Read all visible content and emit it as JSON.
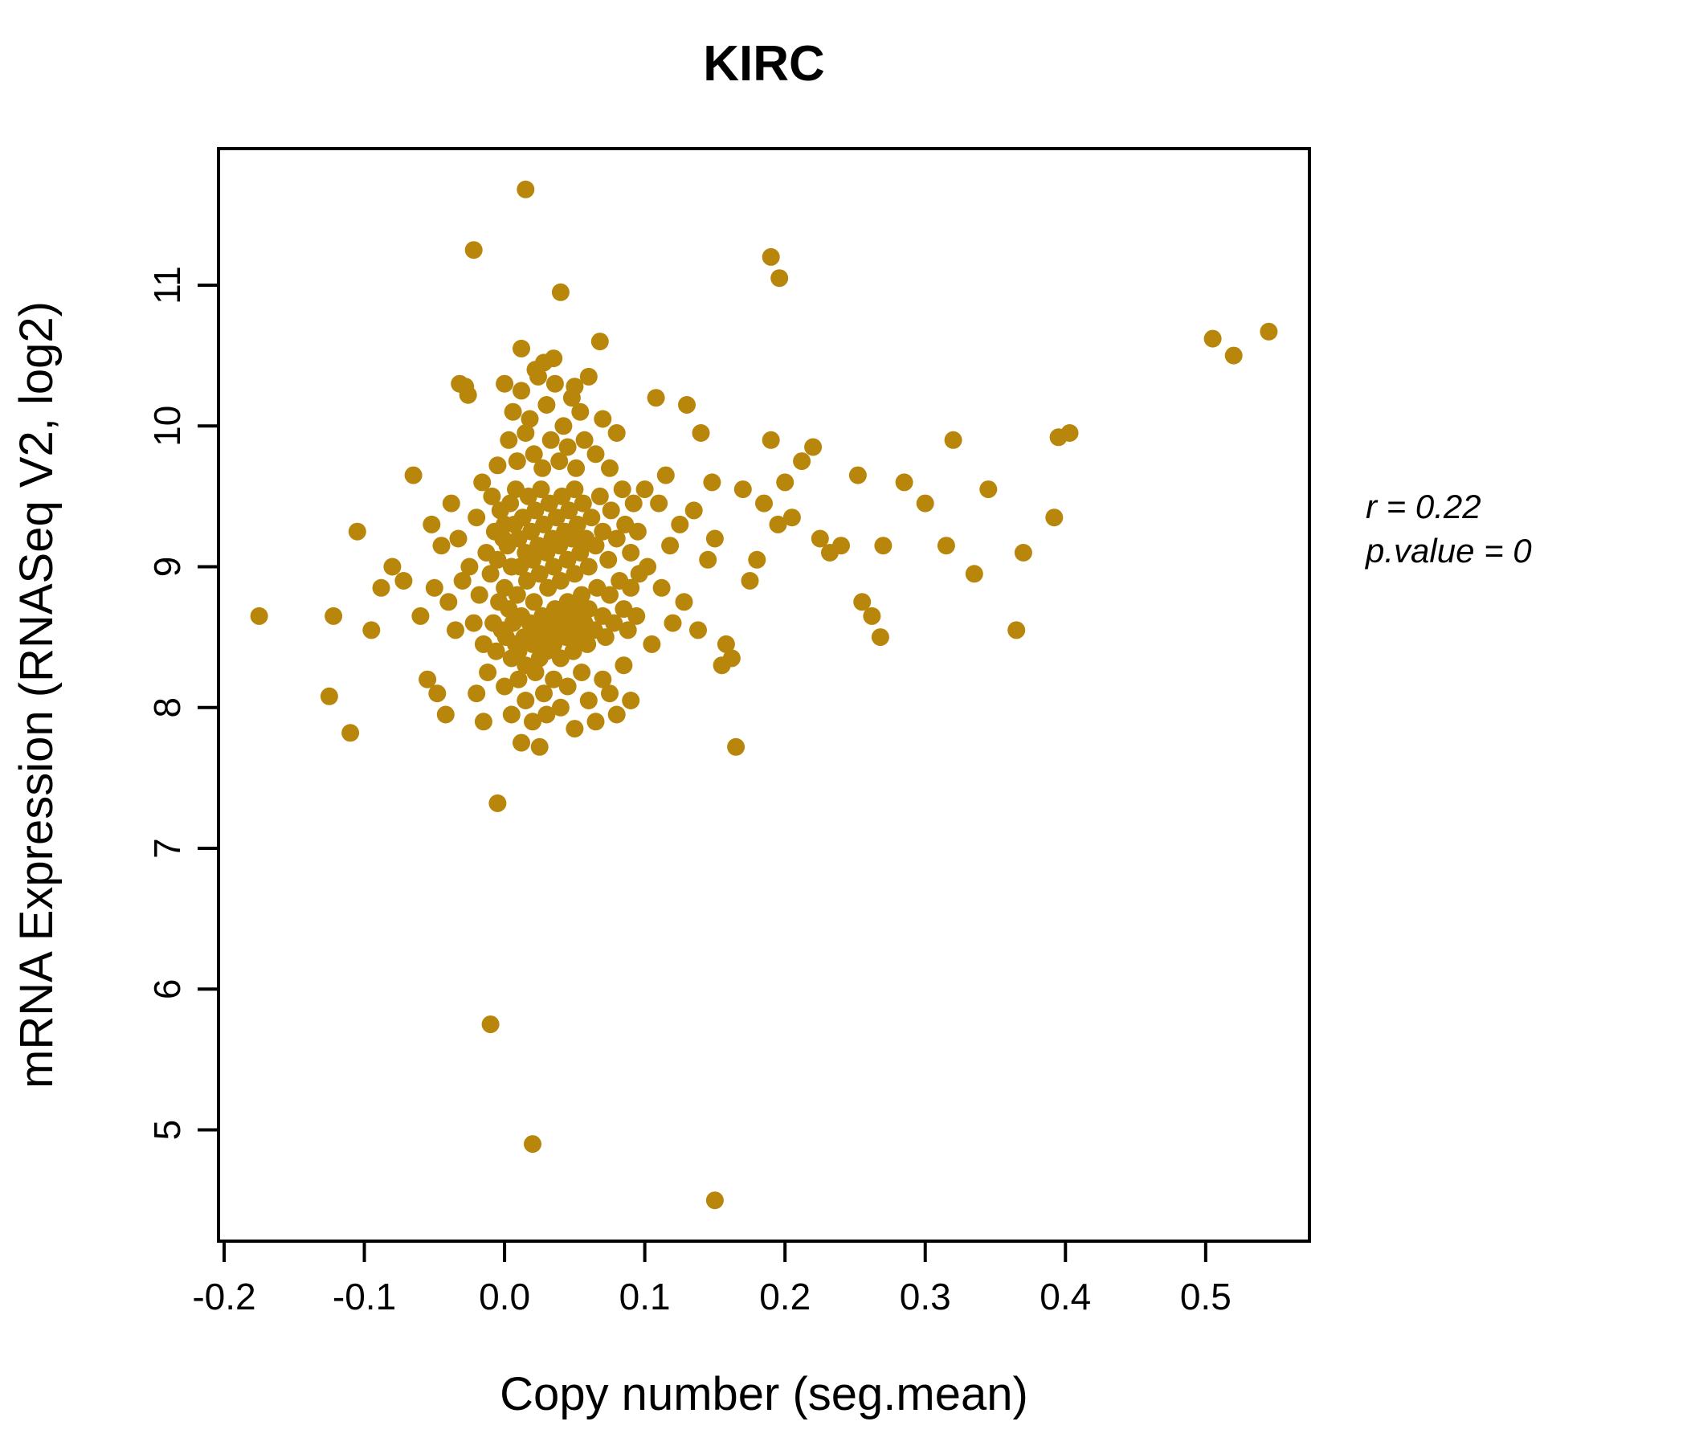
{
  "title": "KIRC",
  "accent_color": "#B8860B",
  "annotation": {
    "r_label": "r = 0.22",
    "p_label": "p.value = 0"
  },
  "chart_data": {
    "type": "scatter",
    "title": "KIRC",
    "xlabel": "Copy number (seg.mean)",
    "ylabel": "mRNA Expression (RNASeq V2, log2)",
    "point_color": "#B8860B",
    "r": 0.22,
    "p_value": 0,
    "x_ticks": [
      "-0.2",
      "-0.1",
      "0.0",
      "0.1",
      "0.2",
      "0.3",
      "0.4",
      "0.5"
    ],
    "y_ticks": [
      "5",
      "6",
      "7",
      "8",
      "9",
      "10",
      "11"
    ],
    "xlim": [
      -0.204,
      0.574
    ],
    "ylim": [
      4.21,
      11.97
    ],
    "grid": false,
    "legend": "none",
    "points": [
      [
        0.015,
        11.68
      ],
      [
        -0.022,
        11.25
      ],
      [
        0.19,
        11.2
      ],
      [
        0.196,
        11.05
      ],
      [
        0.04,
        10.95
      ],
      [
        0.068,
        10.6
      ],
      [
        0.012,
        10.55
      ],
      [
        0.035,
        10.48
      ],
      [
        0.505,
        10.62
      ],
      [
        0.52,
        10.5
      ],
      [
        0.545,
        10.67
      ],
      [
        -0.175,
        8.65
      ],
      [
        -0.125,
        8.08
      ],
      [
        -0.122,
        8.65
      ],
      [
        -0.11,
        7.82
      ],
      [
        -0.105,
        9.25
      ],
      [
        -0.095,
        8.55
      ],
      [
        -0.088,
        8.85
      ],
      [
        -0.08,
        9.0
      ],
      [
        -0.072,
        8.9
      ],
      [
        -0.065,
        9.65
      ],
      [
        -0.06,
        8.65
      ],
      [
        -0.055,
        8.2
      ],
      [
        -0.052,
        9.3
      ],
      [
        -0.05,
        8.85
      ],
      [
        -0.048,
        8.1
      ],
      [
        -0.045,
        9.15
      ],
      [
        -0.042,
        7.95
      ],
      [
        -0.04,
        8.75
      ],
      [
        -0.038,
        9.45
      ],
      [
        -0.035,
        8.55
      ],
      [
        -0.033,
        9.2
      ],
      [
        -0.03,
        8.9
      ],
      [
        -0.028,
        10.28
      ],
      [
        -0.026,
        10.22
      ],
      [
        -0.025,
        9.0
      ],
      [
        -0.022,
        8.6
      ],
      [
        -0.02,
        9.35
      ],
      [
        -0.018,
        8.8
      ],
      [
        -0.016,
        9.6
      ],
      [
        -0.015,
        8.45
      ],
      [
        -0.013,
        9.1
      ],
      [
        -0.012,
        8.25
      ],
      [
        -0.01,
        8.95
      ],
      [
        -0.009,
        9.5
      ],
      [
        -0.008,
        8.6
      ],
      [
        -0.007,
        9.25
      ],
      [
        -0.006,
        8.4
      ],
      [
        -0.005,
        9.05
      ],
      [
        -0.004,
        8.75
      ],
      [
        -0.003,
        9.4
      ],
      [
        -0.002,
        8.55
      ],
      [
        -0.001,
        9.2
      ],
      [
        0.0,
        8.85
      ],
      [
        0.0,
        9.3
      ],
      [
        0.001,
        8.5
      ],
      [
        0.002,
        9.15
      ],
      [
        0.003,
        8.7
      ],
      [
        0.004,
        9.45
      ],
      [
        0.005,
        8.35
      ],
      [
        0.005,
        9.0
      ],
      [
        0.006,
        8.6
      ],
      [
        0.007,
        9.3
      ],
      [
        0.008,
        8.45
      ],
      [
        0.008,
        9.55
      ],
      [
        0.009,
        8.8
      ],
      [
        0.01,
        9.2
      ],
      [
        0.01,
        8.4
      ],
      [
        0.011,
        9.0
      ],
      [
        0.012,
        8.65
      ],
      [
        0.013,
        9.35
      ],
      [
        0.014,
        8.5
      ],
      [
        0.015,
        9.1
      ],
      [
        0.015,
        8.3
      ],
      [
        0.016,
        8.9
      ],
      [
        0.017,
        9.5
      ],
      [
        0.018,
        8.6
      ],
      [
        0.019,
        9.25
      ],
      [
        0.02,
        8.45
      ],
      [
        0.02,
        9.05
      ],
      [
        0.021,
        8.75
      ],
      [
        0.022,
        9.4
      ],
      [
        0.023,
        8.55
      ],
      [
        0.024,
        9.15
      ],
      [
        0.025,
        8.35
      ],
      [
        0.025,
        8.95
      ],
      [
        0.026,
        9.55
      ],
      [
        0.027,
        8.65
      ],
      [
        0.028,
        9.3
      ],
      [
        0.029,
        8.5
      ],
      [
        0.03,
        9.1
      ],
      [
        0.03,
        8.4
      ],
      [
        0.031,
        8.85
      ],
      [
        0.032,
        9.45
      ],
      [
        0.033,
        8.6
      ],
      [
        0.034,
        9.2
      ],
      [
        0.035,
        8.45
      ],
      [
        0.035,
        9.0
      ],
      [
        0.036,
        8.7
      ],
      [
        0.037,
        9.35
      ],
      [
        0.038,
        8.55
      ],
      [
        0.039,
        9.15
      ],
      [
        0.04,
        8.35
      ],
      [
        0.04,
        8.9
      ],
      [
        0.041,
        9.5
      ],
      [
        0.042,
        8.65
      ],
      [
        0.043,
        9.25
      ],
      [
        0.044,
        8.5
      ],
      [
        0.045,
        9.05
      ],
      [
        0.045,
        8.75
      ],
      [
        0.046,
        9.4
      ],
      [
        0.047,
        8.6
      ],
      [
        0.048,
        9.2
      ],
      [
        0.049,
        8.4
      ],
      [
        0.05,
        8.95
      ],
      [
        0.05,
        9.55
      ],
      [
        0.051,
        8.7
      ],
      [
        0.052,
        9.3
      ],
      [
        0.053,
        8.5
      ],
      [
        0.054,
        9.1
      ],
      [
        0.055,
        8.8
      ],
      [
        0.056,
        9.45
      ],
      [
        0.057,
        8.6
      ],
      [
        0.058,
        9.2
      ],
      [
        0.059,
        8.45
      ],
      [
        0.06,
        9.0
      ],
      [
        0.06,
        8.7
      ],
      [
        0.062,
        9.35
      ],
      [
        0.064,
        8.55
      ],
      [
        0.065,
        9.15
      ],
      [
        0.066,
        8.85
      ],
      [
        0.068,
        9.5
      ],
      [
        0.07,
        8.65
      ],
      [
        0.07,
        9.25
      ],
      [
        0.072,
        8.5
      ],
      [
        0.074,
        9.05
      ],
      [
        0.075,
        8.8
      ],
      [
        0.076,
        9.4
      ],
      [
        0.078,
        8.6
      ],
      [
        0.08,
        9.2
      ],
      [
        0.082,
        8.9
      ],
      [
        0.084,
        9.55
      ],
      [
        0.085,
        8.7
      ],
      [
        0.086,
        9.3
      ],
      [
        0.088,
        8.55
      ],
      [
        0.09,
        9.1
      ],
      [
        0.09,
        8.85
      ],
      [
        0.092,
        9.45
      ],
      [
        0.094,
        8.65
      ],
      [
        0.095,
        9.25
      ],
      [
        0.096,
        8.95
      ],
      [
        -0.005,
        9.72
      ],
      [
        0.0,
        10.3
      ],
      [
        0.003,
        9.9
      ],
      [
        0.006,
        10.1
      ],
      [
        0.009,
        9.75
      ],
      [
        0.012,
        10.25
      ],
      [
        0.015,
        9.95
      ],
      [
        0.018,
        10.05
      ],
      [
        0.021,
        9.8
      ],
      [
        0.024,
        10.35
      ],
      [
        0.027,
        9.7
      ],
      [
        0.03,
        10.15
      ],
      [
        0.033,
        9.9
      ],
      [
        0.036,
        10.3
      ],
      [
        0.039,
        9.75
      ],
      [
        0.042,
        10.0
      ],
      [
        0.045,
        9.85
      ],
      [
        0.048,
        10.2
      ],
      [
        0.051,
        9.7
      ],
      [
        0.054,
        10.1
      ],
      [
        0.057,
        9.9
      ],
      [
        0.06,
        10.35
      ],
      [
        0.065,
        9.8
      ],
      [
        0.07,
        10.05
      ],
      [
        0.075,
        9.7
      ],
      [
        0.08,
        9.95
      ],
      [
        0.028,
        10.45
      ],
      [
        0.022,
        10.4
      ],
      [
        0.05,
        10.28
      ],
      [
        -0.032,
        10.3
      ],
      [
        0.0,
        8.15
      ],
      [
        0.005,
        7.95
      ],
      [
        0.01,
        8.2
      ],
      [
        0.012,
        7.75
      ],
      [
        0.015,
        8.05
      ],
      [
        0.02,
        7.9
      ],
      [
        0.022,
        8.25
      ],
      [
        0.025,
        7.72
      ],
      [
        0.028,
        8.1
      ],
      [
        0.03,
        7.95
      ],
      [
        0.035,
        8.2
      ],
      [
        0.04,
        8.0
      ],
      [
        0.045,
        8.15
      ],
      [
        0.05,
        7.85
      ],
      [
        0.055,
        8.25
      ],
      [
        0.06,
        8.05
      ],
      [
        0.065,
        7.9
      ],
      [
        0.07,
        8.2
      ],
      [
        0.075,
        8.1
      ],
      [
        0.08,
        7.95
      ],
      [
        -0.02,
        8.1
      ],
      [
        -0.015,
        7.9
      ],
      [
        0.085,
        8.3
      ],
      [
        0.09,
        8.05
      ],
      [
        0.1,
        9.55
      ],
      [
        0.102,
        9.0
      ],
      [
        0.105,
        8.45
      ],
      [
        0.108,
        10.2
      ],
      [
        0.11,
        9.45
      ],
      [
        0.112,
        8.85
      ],
      [
        0.115,
        9.65
      ],
      [
        0.118,
        9.15
      ],
      [
        0.12,
        8.6
      ],
      [
        0.125,
        9.3
      ],
      [
        0.128,
        8.75
      ],
      [
        0.13,
        10.15
      ],
      [
        0.135,
        9.4
      ],
      [
        0.138,
        8.55
      ],
      [
        0.14,
        9.95
      ],
      [
        0.145,
        9.05
      ],
      [
        0.148,
        9.6
      ],
      [
        0.15,
        9.2
      ],
      [
        0.155,
        8.3
      ],
      [
        0.158,
        8.45
      ],
      [
        0.162,
        8.35
      ],
      [
        0.165,
        7.72
      ],
      [
        0.17,
        9.55
      ],
      [
        0.175,
        8.9
      ],
      [
        0.18,
        9.05
      ],
      [
        0.185,
        9.45
      ],
      [
        0.19,
        9.9
      ],
      [
        0.195,
        9.3
      ],
      [
        0.2,
        9.6
      ],
      [
        0.205,
        9.35
      ],
      [
        0.212,
        9.75
      ],
      [
        0.22,
        9.85
      ],
      [
        0.225,
        9.2
      ],
      [
        0.232,
        9.1
      ],
      [
        0.24,
        9.15
      ],
      [
        0.252,
        9.65
      ],
      [
        0.255,
        8.75
      ],
      [
        0.262,
        8.65
      ],
      [
        0.268,
        8.5
      ],
      [
        0.27,
        9.15
      ],
      [
        0.285,
        9.6
      ],
      [
        0.3,
        9.45
      ],
      [
        0.315,
        9.15
      ],
      [
        0.32,
        9.9
      ],
      [
        0.335,
        8.95
      ],
      [
        0.345,
        9.55
      ],
      [
        0.365,
        8.55
      ],
      [
        0.37,
        9.1
      ],
      [
        0.392,
        9.35
      ],
      [
        0.395,
        9.92
      ],
      [
        0.403,
        9.95
      ],
      [
        -0.005,
        7.32
      ],
      [
        -0.01,
        5.75
      ],
      [
        0.02,
        4.9
      ],
      [
        0.15,
        4.5
      ]
    ]
  }
}
